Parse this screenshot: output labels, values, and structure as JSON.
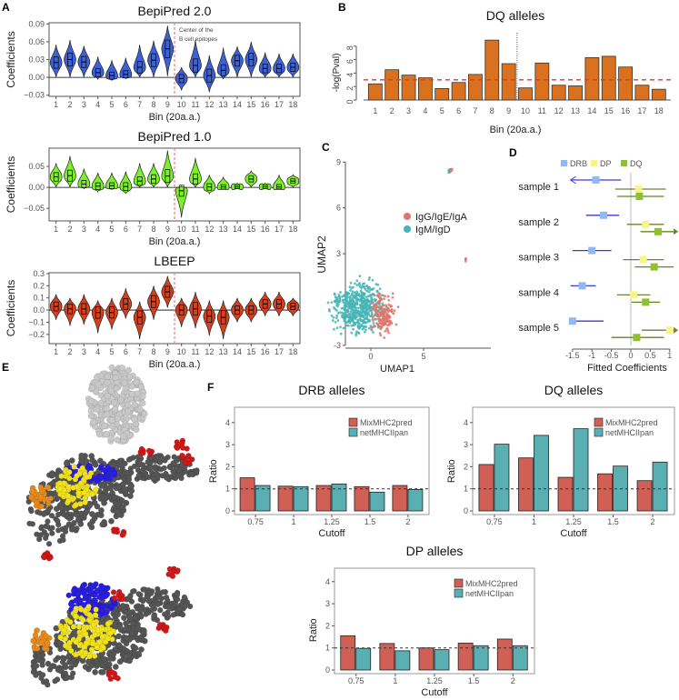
{
  "panels": [
    "A",
    "B",
    "C",
    "D",
    "E",
    "F"
  ],
  "colors": {
    "bepi2": "#3d62d8",
    "bepi1": "#7cf02a",
    "lbeep": "#d6401e",
    "dq_bar": "#d9711f",
    "mix": "#d06056",
    "net": "#5aafb3",
    "igg": "#e0766a",
    "igm": "#45b5b5",
    "drb": "#8fb8f5",
    "dp": "#f5f58a",
    "dq": "#8fc031"
  },
  "annotation_center": [
    "Center of the",
    "B cell epitopes"
  ],
  "chart_data": [
    {
      "id": "bepipred2",
      "type": "violin",
      "title": "BepiPred 2.0",
      "xlabel": "Bin (20a.a.)",
      "ylabel": "Coefficients",
      "categories": [
        "1",
        "2",
        "3",
        "4",
        "5",
        "6",
        "7",
        "8",
        "9",
        "10",
        "11",
        "12",
        "13",
        "14",
        "15",
        "16",
        "17",
        "18"
      ],
      "yticks": [
        "0.09",
        "0.06",
        "0.03",
        "0.00",
        "−0.03"
      ],
      "ytick_values": [
        0.09,
        0.06,
        0.03,
        0,
        -0.03
      ],
      "ylim": [
        -0.032,
        0.092
      ],
      "median": [
        0.025,
        0.03,
        0.026,
        0.008,
        0.003,
        0.005,
        0.017,
        0.029,
        0.048,
        -0.002,
        0.02,
        0.003,
        0.012,
        0.028,
        0.03,
        0.015,
        0.015,
        0.017
      ],
      "max": [
        0.055,
        0.063,
        0.053,
        0.035,
        0.029,
        0.033,
        0.055,
        0.062,
        0.087,
        0.017,
        0.063,
        0.037,
        0.05,
        0.052,
        0.06,
        0.042,
        0.04,
        0.04
      ],
      "min": [
        0,
        0,
        0,
        -0.003,
        -0.005,
        -0.002,
        0,
        0,
        0.002,
        -0.022,
        0,
        -0.025,
        -0.003,
        0,
        0,
        0,
        0,
        0
      ]
    },
    {
      "id": "bepipred1",
      "type": "violin",
      "title": "BepiPred 1.0",
      "xlabel": "Bin (20a.a.)",
      "ylabel": "Coefficients",
      "categories": [
        "1",
        "2",
        "3",
        "4",
        "5",
        "6",
        "7",
        "8",
        "9",
        "10",
        "11",
        "12",
        "13",
        "14",
        "15",
        "16",
        "17",
        "18"
      ],
      "yticks": [
        "0.05",
        "0.00",
        "−0.05"
      ],
      "ytick_values": [
        0.05,
        0,
        -0.05
      ],
      "ylim": [
        -0.08,
        0.0935
      ],
      "median": [
        0.025,
        0.028,
        0.008,
        0.003,
        0.004,
        0.002,
        0.015,
        0.02,
        0.027,
        -0.008,
        0.02,
        0.001,
        0.001,
        0.001,
        0.02,
        0.001,
        0.001,
        0.015
      ],
      "max": [
        0.058,
        0.075,
        0.045,
        0.035,
        0.035,
        0.038,
        0.058,
        0.058,
        0.088,
        0.003,
        0.07,
        0.03,
        0.025,
        0.01,
        0.04,
        0.01,
        0.03,
        0.03
      ],
      "min": [
        0,
        0,
        -0.003,
        -0.01,
        -0.005,
        -0.015,
        0,
        0,
        0,
        -0.072,
        0,
        -0.015,
        -0.005,
        -0.003,
        0,
        -0.003,
        -0.003,
        0
      ]
    },
    {
      "id": "lbeep",
      "type": "violin",
      "title": "LBEEP",
      "xlabel": "Bin (20a.a.)",
      "ylabel": "Coefficients",
      "categories": [
        "1",
        "2",
        "3",
        "4",
        "5",
        "6",
        "7",
        "8",
        "9",
        "10",
        "11",
        "12",
        "13",
        "14",
        "15",
        "16",
        "17",
        "18"
      ],
      "yticks": [
        "0.3",
        "0.2",
        "0.1",
        "0.0",
        "−0.1",
        "−0.2"
      ],
      "ytick_values": [
        0.3,
        0.2,
        0.1,
        0,
        -0.1,
        -0.2
      ],
      "ylim": [
        -0.276,
        0.307
      ],
      "median": [
        0.03,
        0.01,
        0.01,
        -0.02,
        -0.02,
        0.05,
        -0.06,
        0.07,
        0.15,
        0,
        0.01,
        -0.05,
        -0.06,
        0,
        0,
        0.05,
        0.05,
        0.03
      ],
      "max": [
        0.13,
        0.1,
        0.13,
        0.08,
        0.1,
        0.18,
        0.07,
        0.2,
        0.28,
        0.1,
        0.15,
        0.08,
        0.08,
        0.1,
        0.1,
        0.15,
        0.15,
        0.1
      ],
      "min": [
        -0.08,
        -0.13,
        -0.12,
        -0.19,
        -0.16,
        -0.07,
        -0.24,
        -0.08,
        0.02,
        -0.14,
        -0.15,
        -0.21,
        -0.24,
        -0.1,
        -0.1,
        -0.05,
        -0.05,
        -0.05
      ]
    },
    {
      "id": "dq_bins",
      "type": "bar",
      "title": "DQ alleles",
      "xlabel": "Bin (20a.a.)",
      "ylabel": "-log(Pval)",
      "categories": [
        "1",
        "2",
        "3",
        "4",
        "5",
        "6",
        "7",
        "8",
        "9",
        "10",
        "11",
        "12",
        "13",
        "14",
        "15",
        "16",
        "17",
        "18"
      ],
      "values": [
        2.4,
        4.5,
        3.7,
        3.3,
        1.7,
        2.6,
        3.8,
        8.9,
        5.4,
        1.8,
        5.5,
        2.2,
        2.1,
        6.3,
        6.5,
        4.9,
        2.2,
        1.6
      ],
      "yticks": [
        "0",
        "2",
        "4",
        "6",
        "8"
      ],
      "ytick_values": [
        0,
        2,
        4,
        6,
        8
      ],
      "threshold": 3
    },
    {
      "id": "umap",
      "type": "scatter",
      "xlabel": "UMAP1",
      "ylabel": "UMAP2",
      "xticks": [
        "0",
        "5"
      ],
      "xtick_values": [
        0,
        5
      ],
      "yticks": [
        "9",
        "6",
        "3",
        "0",
        "-3"
      ],
      "ytick_values": [
        9,
        6,
        3,
        0,
        -3
      ],
      "legend": [
        "IgG/IgE/IgA",
        "IgM/IgD"
      ],
      "clusters": [
        {
          "group": "IgM/IgD",
          "center": [
            -1,
            -0.5
          ],
          "spread": [
            1.6,
            1.1
          ],
          "n": 520
        },
        {
          "group": "IgG/IgE/IgA",
          "center": [
            1.2,
            -1
          ],
          "spread": [
            0.7,
            0.9
          ],
          "n": 160
        },
        {
          "group": "IgM/IgD",
          "center": [
            7.5,
            8.4
          ],
          "spread": [
            0.1,
            0.1
          ],
          "n": 8
        },
        {
          "group": "IgG/IgE/IgA",
          "center": [
            7.6,
            8.5
          ],
          "spread": [
            0.1,
            0.1
          ],
          "n": 6
        },
        {
          "group": "IgG/IgE/IgA",
          "center": [
            9,
            2.6
          ],
          "spread": [
            0.05,
            0.1
          ],
          "n": 4
        }
      ]
    },
    {
      "id": "forest",
      "type": "forest",
      "xlabel": "Fitted Coefficients",
      "legend": [
        "DRB",
        "DP",
        "DQ"
      ],
      "xticks": [
        "-1.5",
        "-1",
        "-0.5",
        "0",
        "0.5",
        "1"
      ],
      "xtick_values": [
        -1.5,
        -1,
        -0.5,
        0,
        0.5,
        1
      ],
      "rows": [
        {
          "label": "sample 1",
          "DRB": [
            -0.9,
            -1.6,
            -0.25
          ],
          "DP": [
            0.2,
            -0.4,
            0.9
          ],
          "DQ": [
            0.22,
            -0.35,
            0.85
          ]
        },
        {
          "label": "sample 2",
          "DRB": [
            -0.7,
            -1.15,
            -0.3
          ],
          "DP": [
            0.38,
            -0.1,
            0.85
          ],
          "DQ": [
            0.7,
            0.25,
            1.15
          ]
        },
        {
          "label": "sample 3",
          "DRB": [
            -1.0,
            -1.5,
            -0.5
          ],
          "DP": [
            0.32,
            -0.2,
            0.85
          ],
          "DQ": [
            0.6,
            0.1,
            1.1
          ]
        },
        {
          "label": "sample 4",
          "DRB": [
            -1.25,
            -1.55,
            -0.9
          ],
          "DP": [
            0.07,
            -0.35,
            0.5
          ],
          "DQ": [
            0.38,
            0.02,
            0.75
          ]
        },
        {
          "label": "sample 5",
          "DRB": [
            -1.5,
            -1.55,
            -0.7
          ],
          "DP": [
            1.0,
            0.28,
            1.15
          ],
          "DQ": [
            0.15,
            -0.5,
            0.85
          ]
        }
      ]
    },
    {
      "id": "drb_ratio",
      "type": "bar",
      "title": "DRB alleles",
      "xlabel": "Cutoff",
      "ylabel": "Ratio",
      "categories": [
        "0.75",
        "1",
        "1.25",
        "1.5",
        "2"
      ],
      "yticks": [
        "0",
        "1",
        "2",
        "3",
        "4"
      ],
      "ytick_values": [
        0,
        1,
        2,
        3,
        4
      ],
      "reference": 1,
      "series": [
        {
          "name": "MixMHC2pred",
          "values": [
            1.5,
            1.12,
            1.15,
            1.1,
            1.15
          ]
        },
        {
          "name": "netMHCIIpan",
          "values": [
            1.15,
            1.1,
            1.22,
            0.85,
            0.97
          ]
        }
      ]
    },
    {
      "id": "dq_ratio",
      "type": "bar",
      "title": "DQ alleles",
      "xlabel": "Cutoff",
      "ylabel": "Ratio",
      "categories": [
        "0.75",
        "1",
        "1.25",
        "1.5",
        "2"
      ],
      "yticks": [
        "0",
        "1",
        "2",
        "3",
        "4"
      ],
      "ytick_values": [
        0,
        1,
        2,
        3,
        4
      ],
      "reference": 1,
      "series": [
        {
          "name": "MixMHC2pred",
          "values": [
            2.1,
            2.4,
            1.52,
            1.68,
            1.37
          ]
        },
        {
          "name": "netMHCIIpan",
          "values": [
            3.02,
            3.42,
            3.72,
            2.03,
            2.21
          ]
        }
      ]
    },
    {
      "id": "dp_ratio",
      "type": "bar",
      "title": "DP alleles",
      "xlabel": "Cutoff",
      "ylabel": "Ratio",
      "categories": [
        "0.75",
        "1",
        "1.25",
        "1.5",
        "2"
      ],
      "yticks": [
        "0",
        "1",
        "2",
        "3",
        "4"
      ],
      "ytick_values": [
        0,
        1,
        2,
        3,
        4
      ],
      "reference": 1,
      "series": [
        {
          "name": "MixMHC2pred",
          "values": [
            1.55,
            1.2,
            1.0,
            1.22,
            1.4
          ]
        },
        {
          "name": "netMHCIIpan",
          "values": [
            0.98,
            0.87,
            0.92,
            1.1,
            1.1
          ]
        }
      ]
    }
  ]
}
